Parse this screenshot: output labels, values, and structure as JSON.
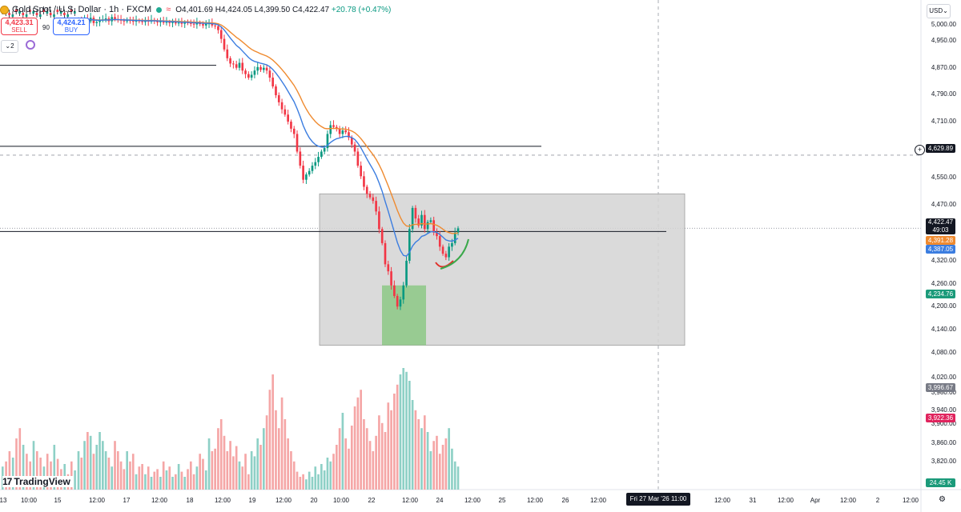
{
  "title": {
    "symbol": "Gold Spot / U.S. Dollar · 1h · FXCM",
    "ohlc_prefix": "O4,401.69 H4,424.05 L4,399.50 C4,422.47",
    "change": "+20.78 (+0.47%)",
    "icons": [
      "gold-coin-icon",
      "market-status-dot",
      "market-icon"
    ]
  },
  "trade": {
    "sell_price": "4,423.31",
    "sell_label": "SELL",
    "spread": "90",
    "buy_price": "4,424.21",
    "buy_label": "BUY"
  },
  "indicator": {
    "interval_chip": "2"
  },
  "currency": "USD",
  "price_axis": {
    "labels": [
      "5,000.00",
      "4,950.00",
      "4,870.00",
      "4,790.00",
      "4,710.00",
      "4,550.00",
      "4,470.00",
      "4,320.00",
      "4,260.00",
      "4,200.00",
      "4,140.00",
      "4,080.00",
      "4,020.00",
      "3,980.00",
      "3,940.00",
      "3,900.00",
      "3,860.00",
      "3,820.00"
    ]
  },
  "tags": {
    "crosshair_price": "4,629.89",
    "last_price": "4,422.47",
    "countdown": "49:03",
    "ma_orange": "4,391.28",
    "ma_blue": "4,387.05",
    "green_level": "4,234.76",
    "gray_level": "3,996.67",
    "pink_level": "3,922.36",
    "volume": "24.45 K"
  },
  "time_axis": {
    "labels": [
      "13",
      "10:00",
      "15",
      "12:00",
      "17",
      "12:00",
      "18",
      "12:00",
      "19",
      "12:00",
      "20",
      "10:00",
      "22",
      "12:00",
      "24",
      "12:00",
      "25",
      "12:00",
      "26",
      "12:00",
      "12:00",
      "31",
      "12:00",
      "Apr",
      "12:00",
      "2",
      "12:00"
    ],
    "crosshair_date": "Fri 27 Mar '26   11:00"
  },
  "logo": {
    "mark": "17",
    "text": "TradingView"
  },
  "colors": {
    "up": "#089981",
    "down": "#f23645",
    "vol_up": "#8ed0c6",
    "vol_down": "#f5a6a6",
    "ma_orange": "#ef8a2f",
    "ma_blue": "#3b7de0",
    "zone": "#d4d4d4",
    "green_zone": "#90c98a",
    "arc_green": "#3aa84a",
    "arc_red": "#e0312a"
  },
  "chart_data": {
    "type": "candlestick",
    "symbol": "XAUUSD",
    "timeframe": "1h",
    "ohlc_current": {
      "open": 4401.69,
      "high": 4424.05,
      "low": 4399.5,
      "close": 4422.47
    },
    "close": [
      5015,
      5012,
      5018,
      5010,
      5020,
      5005,
      5008,
      5013,
      5015,
      5018,
      5010,
      5022,
      5016,
      5014,
      5012,
      5010,
      5013,
      5011,
      5009,
      5012,
      5010,
      5008,
      5012,
      5009,
      5014,
      5010,
      5007,
      5011,
      5006,
      5008,
      5005,
      5009,
      5004,
      5006,
      5003,
      5007,
      5005,
      5003,
      5001,
      5006,
      5002,
      4998,
      5003,
      5004,
      4998,
      4996,
      4985,
      4960,
      4930,
      4905,
      4890,
      4888,
      4878,
      4892,
      4870,
      4860,
      4850,
      4858,
      4870,
      4880,
      4872,
      4878,
      4870,
      4850,
      4825,
      4800,
      4780,
      4760,
      4745,
      4725,
      4705,
      4690,
      4640,
      4600,
      4560,
      4575,
      4585,
      4600,
      4610,
      4625,
      4640,
      4650,
      4690,
      4715,
      4710,
      4705,
      4690,
      4700,
      4695,
      4680,
      4660,
      4640,
      4600,
      4570,
      4540,
      4520,
      4510,
      4500,
      4470,
      4420,
      4380,
      4320,
      4300,
      4260,
      4230,
      4200,
      4220,
      4260,
      4330,
      4420,
      4480,
      4450,
      4430,
      4460,
      4420,
      4440,
      4445,
      4410,
      4400,
      4370,
      4350,
      4340,
      4370,
      4380,
      4410,
      4422
    ],
    "ma_fast_end": 4387.05,
    "ma_slow_end": 4391.28,
    "horizontal_levels": [
      4885,
      4655,
      4413
    ],
    "zone": {
      "top": 4520,
      "bottom": 4090
    },
    "green_zone": {
      "top": 4260,
      "bottom": 4090
    },
    "crosshair_price": 4629.89,
    "volume": [
      30,
      25,
      38,
      45,
      42,
      28,
      35,
      45,
      38,
      30,
      25,
      18,
      38,
      30,
      22,
      16,
      30,
      22,
      28,
      12,
      18,
      20,
      12,
      18,
      10,
      14,
      16,
      10,
      22,
      15,
      18,
      10,
      12,
      20,
      14,
      10,
      16,
      22,
      12,
      18,
      28,
      24,
      15,
      40,
      30,
      32,
      48,
      55,
      42,
      30,
      38,
      26,
      34,
      22,
      18,
      28,
      12,
      30,
      26,
      40,
      35,
      48,
      58,
      78,
      90,
      62,
      48,
      72,
      55,
      40,
      30,
      22,
      14,
      10,
      12,
      8,
      14,
      10,
      18,
      12,
      20,
      15,
      25,
      22,
      28,
      35,
      48,
      60,
      40,
      32,
      50,
      65,
      72,
      78,
      55,
      48,
      38,
      30,
      42,
      58,
      52,
      45,
      68,
      62,
      75,
      82,
      90,
      95,
      92,
      85,
      70,
      62,
      55,
      48,
      58,
      45,
      30,
      38,
      42,
      28,
      35,
      40,
      48,
      32,
      22,
      18
    ]
  }
}
